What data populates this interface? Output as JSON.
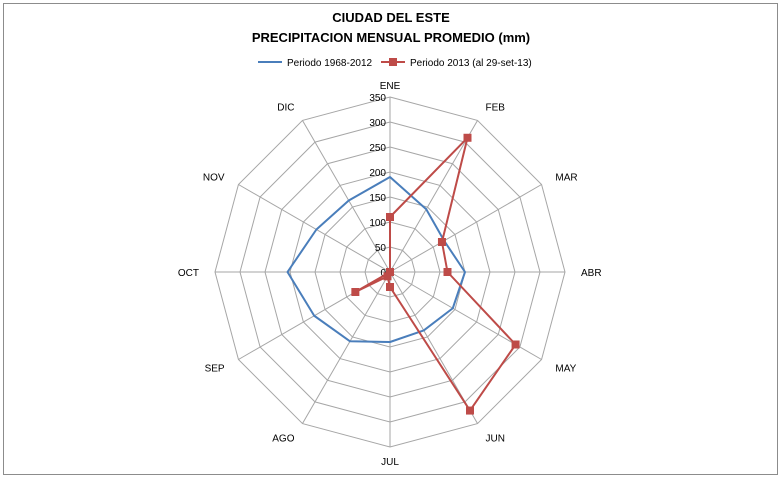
{
  "chart_data": {
    "type": "radar",
    "title": "CIUDAD DEL ESTE",
    "subtitle": "PRECIPITACION MENSUAL PROMEDIO  (mm)",
    "categories": [
      "ENE",
      "FEB",
      "MAR",
      "ABR",
      "MAY",
      "JUN",
      "JUL",
      "AGO",
      "SEP",
      "OCT",
      "NOV",
      "DIC"
    ],
    "radial_ticks": [
      0,
      50,
      100,
      150,
      200,
      250,
      300,
      350
    ],
    "rlim": [
      0,
      350
    ],
    "grid": true,
    "legend_position": "top",
    "series": [
      {
        "name": "Periodo 1968-2012",
        "color": "#4a7ebb",
        "marker": "none",
        "values": [
          190,
          145,
          125,
          150,
          145,
          135,
          140,
          160,
          175,
          205,
          170,
          165
        ]
      },
      {
        "name": "Periodo 2013 (al 29-set-13)",
        "color": "#be4b48",
        "marker": "square",
        "values": [
          110,
          310,
          120,
          115,
          290,
          320,
          30,
          10,
          80,
          0,
          0,
          0
        ]
      }
    ]
  }
}
